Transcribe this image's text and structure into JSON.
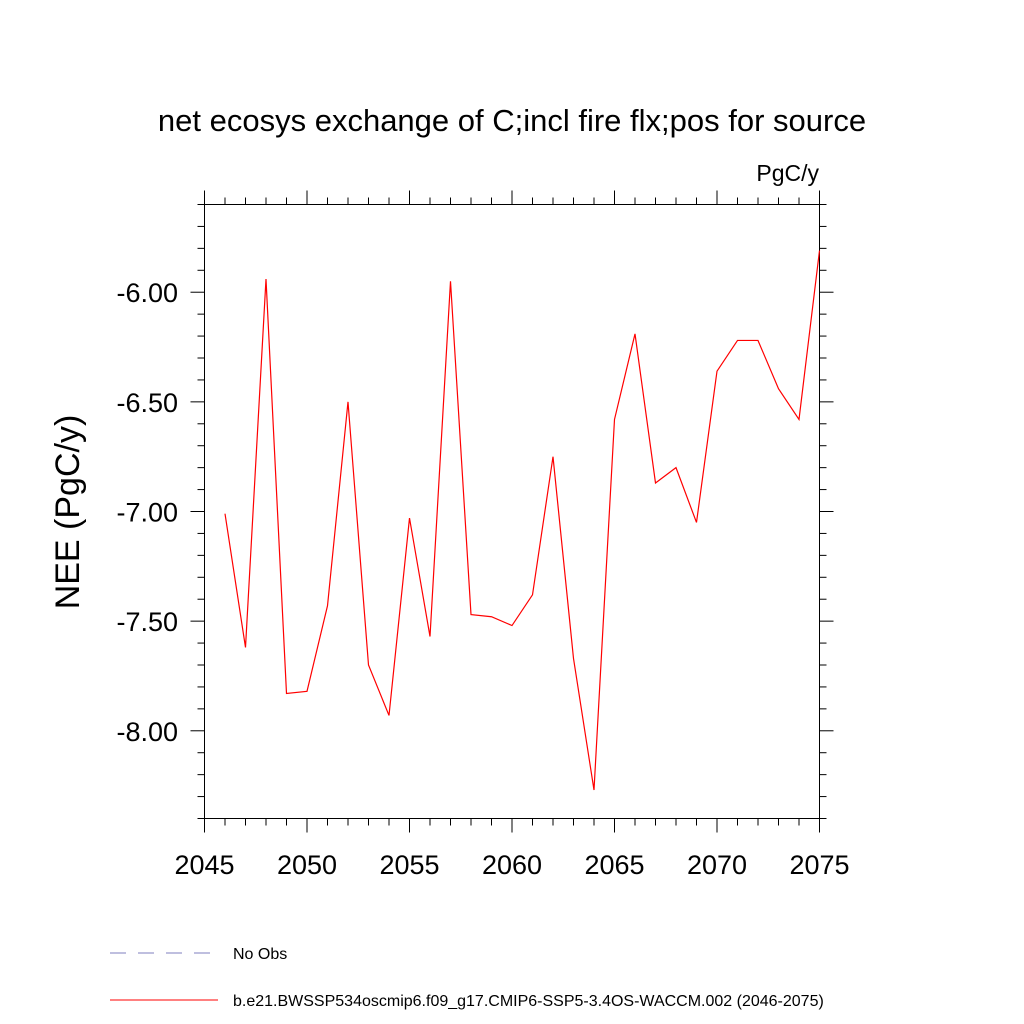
{
  "chart_data": {
    "type": "line",
    "title": "net ecosys exchange of C;incl fire flx;pos for source",
    "units": "PgC/y",
    "xlabel": "",
    "ylabel": "NEE  (PgC/y)",
    "xlim": [
      2045,
      2075
    ],
    "ylim": [
      -8.4,
      -5.6
    ],
    "x_ticks": [
      2045,
      2050,
      2055,
      2060,
      2065,
      2070,
      2075
    ],
    "y_ticks": [
      -8.0,
      -7.5,
      -7.0,
      -6.5,
      -6.0
    ],
    "y_tick_labels": [
      "-8.00",
      "-7.50",
      "-7.00",
      "-6.50",
      "-6.00"
    ],
    "grid": false,
    "legend_position": "bottom",
    "legend": [
      {
        "label": "No Obs",
        "color": "#7f7fbf",
        "style": "dashed"
      },
      {
        "label": "b.e21.BWSSP534oscmip6.f09_g17.CMIP6-SSP5-3.4OS-WACCM.002 (2046-2075)",
        "color": "#ff0000",
        "style": "solid"
      }
    ],
    "series": [
      {
        "name": "b.e21.BWSSP534oscmip6.f09_g17.CMIP6-SSP5-3.4OS-WACCM.002 (2046-2075)",
        "color": "#ff0000",
        "x": [
          2046,
          2047,
          2048,
          2049,
          2050,
          2051,
          2052,
          2053,
          2054,
          2055,
          2056,
          2057,
          2058,
          2059,
          2060,
          2061,
          2062,
          2063,
          2064,
          2065,
          2066,
          2067,
          2068,
          2069,
          2070,
          2071,
          2072,
          2073,
          2074,
          2075
        ],
        "y": [
          -7.01,
          -7.62,
          -5.94,
          -7.83,
          -7.82,
          -7.43,
          -6.5,
          -7.7,
          -7.93,
          -7.03,
          -7.57,
          -5.95,
          -7.47,
          -7.48,
          -7.52,
          -7.38,
          -6.75,
          -7.67,
          -8.27,
          -6.58,
          -6.19,
          -6.87,
          -6.8,
          -7.05,
          -6.36,
          -6.22,
          -6.22,
          -6.44,
          -6.58,
          -5.81
        ]
      }
    ]
  }
}
